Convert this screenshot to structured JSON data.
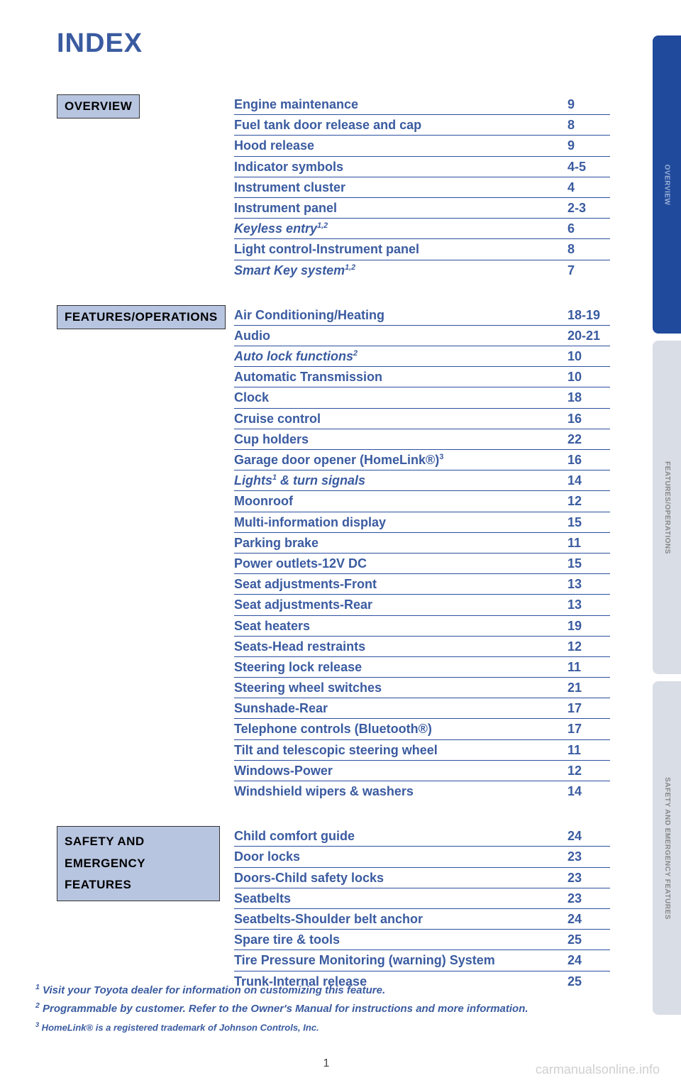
{
  "title": "INDEX",
  "page_number": "1",
  "watermark": "carmanualsonline.info",
  "colors": {
    "accent": "#3a5ba0",
    "rule": "#2b4fa0",
    "label_bg": "#b8c5e0",
    "tab_active_bg": "#204a9c",
    "tab_inactive_bg": "#d8dde6"
  },
  "sidetabs": [
    {
      "label": "OVERVIEW",
      "active": true
    },
    {
      "label": "FEATURES/OPERATIONS",
      "active": false
    },
    {
      "label": "SAFETY AND EMERGENCY FEATURES",
      "active": false
    }
  ],
  "sections": [
    {
      "label": "OVERVIEW",
      "entries": [
        {
          "label": "Engine maintenance",
          "page": "9"
        },
        {
          "label": "Fuel tank door release and cap",
          "page": "8"
        },
        {
          "label": "Hood release",
          "page": "9"
        },
        {
          "label": "Indicator symbols",
          "page": "4-5"
        },
        {
          "label": "Instrument cluster",
          "page": "4"
        },
        {
          "label": "Instrument panel",
          "page": "2-3"
        },
        {
          "label": "Keyless entry",
          "sup": "1,2",
          "page": "6",
          "italic": true
        },
        {
          "label": "Light control-Instrument panel",
          "page": "8"
        },
        {
          "label": "Smart Key system",
          "sup": "1,2",
          "page": "7",
          "italic": true
        }
      ]
    },
    {
      "label": "FEATURES/OPERATIONS",
      "entries": [
        {
          "label": "Air Conditioning/Heating",
          "page": "18-19"
        },
        {
          "label": "Audio",
          "page": "20-21"
        },
        {
          "label": "Auto lock functions",
          "sup": "2",
          "page": "10",
          "italic": true
        },
        {
          "label": "Automatic Transmission",
          "page": "10"
        },
        {
          "label": "Clock",
          "page": "18"
        },
        {
          "label": "Cruise control",
          "page": "16"
        },
        {
          "label": "Cup holders",
          "page": "22"
        },
        {
          "label": "Garage door opener (HomeLink®)",
          "sup": "3",
          "page": "16"
        },
        {
          "label": "Lights",
          "sup": "1",
          "label2": " & turn signals",
          "page": "14",
          "italic": true
        },
        {
          "label": "Moonroof",
          "page": "12"
        },
        {
          "label": "Multi-information display",
          "page": "15"
        },
        {
          "label": "Parking brake",
          "page": "11"
        },
        {
          "label": "Power outlets-12V DC",
          "page": "15"
        },
        {
          "label": "Seat adjustments-Front",
          "page": "13"
        },
        {
          "label": "Seat adjustments-Rear",
          "page": "13"
        },
        {
          "label": "Seat heaters",
          "page": "19"
        },
        {
          "label": "Seats-Head restraints",
          "page": "12"
        },
        {
          "label": "Steering lock release",
          "page": "11"
        },
        {
          "label": "Steering wheel switches",
          "page": "21"
        },
        {
          "label": "Sunshade-Rear",
          "page": "17"
        },
        {
          "label": "Telephone controls (Bluetooth®)",
          "page": "17"
        },
        {
          "label": "Tilt and telescopic steering wheel",
          "page": "11"
        },
        {
          "label": "Windows-Power",
          "page": "12"
        },
        {
          "label": "Windshield wipers & washers",
          "page": "14"
        }
      ]
    },
    {
      "label": "SAFETY AND\nEMERGENCY FEATURES",
      "entries": [
        {
          "label": "Child comfort guide",
          "page": "24"
        },
        {
          "label": "Door locks",
          "page": "23"
        },
        {
          "label": "Doors-Child safety locks",
          "page": "23"
        },
        {
          "label": "Seatbelts",
          "page": "23"
        },
        {
          "label": "Seatbelts-Shoulder belt anchor",
          "page": "24"
        },
        {
          "label": "Spare tire & tools",
          "page": "25"
        },
        {
          "label": "Tire Pressure Monitoring (warning) System",
          "page": "24"
        },
        {
          "label": "Trunk-Internal release",
          "page": "25"
        }
      ]
    }
  ],
  "footnotes": [
    {
      "num": "1",
      "text": "Visit your Toyota dealer for information on customizing this feature."
    },
    {
      "num": "2",
      "text": "Programmable by customer. Refer to the Owner's Manual for instructions and more information."
    },
    {
      "num": "3",
      "text": "HomeLink® is a registered trademark of Johnson Controls, Inc.",
      "small": true
    }
  ]
}
